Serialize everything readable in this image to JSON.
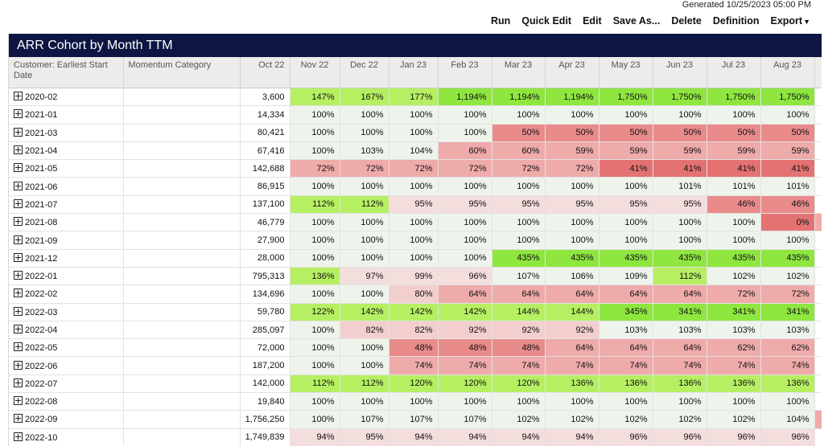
{
  "generated": "Generated 10/25/2023 05:00 PM",
  "toolbar": {
    "run": "Run",
    "quick_edit": "Quick Edit",
    "edit": "Edit",
    "save_as": "Save As...",
    "delete": "Delete",
    "definition": "Definition",
    "export": "Export"
  },
  "report": {
    "title": "ARR Cohort by Month TTM",
    "columns": [
      "Customer: Earliest Start Date",
      "Momentum Category",
      "Oct 22",
      "Nov 22",
      "Dec 22",
      "Jan 23",
      "Feb 23",
      "Mar 23",
      "Apr 23",
      "May 23",
      "Jun 23",
      "Jul 23",
      "Aug 23"
    ],
    "rows": [
      {
        "cohort": "2020-02",
        "momentum": "",
        "oct": "3,600",
        "pct": [
          "147%",
          "167%",
          "177%",
          "1,194%",
          "1,194%",
          "1,194%",
          "1,750%",
          "1,750%",
          "1,750%",
          "1,750%"
        ]
      },
      {
        "cohort": "2021-01",
        "momentum": "",
        "oct": "14,334",
        "pct": [
          "100%",
          "100%",
          "100%",
          "100%",
          "100%",
          "100%",
          "100%",
          "100%",
          "100%",
          "100%"
        ]
      },
      {
        "cohort": "2021-03",
        "momentum": "",
        "oct": "80,421",
        "pct": [
          "100%",
          "100%",
          "100%",
          "100%",
          "50%",
          "50%",
          "50%",
          "50%",
          "50%",
          "50%"
        ]
      },
      {
        "cohort": "2021-04",
        "momentum": "",
        "oct": "67,416",
        "pct": [
          "100%",
          "103%",
          "104%",
          "60%",
          "60%",
          "59%",
          "59%",
          "59%",
          "59%",
          "59%"
        ]
      },
      {
        "cohort": "2021-05",
        "momentum": "",
        "oct": "142,688",
        "pct": [
          "72%",
          "72%",
          "72%",
          "72%",
          "72%",
          "72%",
          "41%",
          "41%",
          "41%",
          "41%"
        ]
      },
      {
        "cohort": "2021-06",
        "momentum": "",
        "oct": "86,915",
        "pct": [
          "100%",
          "100%",
          "100%",
          "100%",
          "100%",
          "100%",
          "100%",
          "101%",
          "101%",
          "101%"
        ]
      },
      {
        "cohort": "2021-07",
        "momentum": "",
        "oct": "137,100",
        "pct": [
          "112%",
          "112%",
          "95%",
          "95%",
          "95%",
          "95%",
          "95%",
          "95%",
          "46%",
          "46%"
        ]
      },
      {
        "cohort": "2021-08",
        "momentum": "",
        "oct": "46,779",
        "pct": [
          "100%",
          "100%",
          "100%",
          "100%",
          "100%",
          "100%",
          "100%",
          "100%",
          "100%",
          "0%"
        ]
      },
      {
        "cohort": "2021-09",
        "momentum": "",
        "oct": "27,900",
        "pct": [
          "100%",
          "100%",
          "100%",
          "100%",
          "100%",
          "100%",
          "100%",
          "100%",
          "100%",
          "100%"
        ]
      },
      {
        "cohort": "2021-12",
        "momentum": "",
        "oct": "28,000",
        "pct": [
          "100%",
          "100%",
          "100%",
          "100%",
          "435%",
          "435%",
          "435%",
          "435%",
          "435%",
          "435%"
        ]
      },
      {
        "cohort": "2022-01",
        "momentum": "",
        "oct": "795,313",
        "pct": [
          "136%",
          "97%",
          "99%",
          "96%",
          "107%",
          "106%",
          "109%",
          "112%",
          "102%",
          "102%"
        ]
      },
      {
        "cohort": "2022-02",
        "momentum": "",
        "oct": "134,696",
        "pct": [
          "100%",
          "100%",
          "80%",
          "64%",
          "64%",
          "64%",
          "64%",
          "64%",
          "72%",
          "72%"
        ]
      },
      {
        "cohort": "2022-03",
        "momentum": "",
        "oct": "59,780",
        "pct": [
          "122%",
          "142%",
          "142%",
          "142%",
          "144%",
          "144%",
          "345%",
          "341%",
          "341%",
          "341%"
        ]
      },
      {
        "cohort": "2022-04",
        "momentum": "",
        "oct": "285,097",
        "pct": [
          "100%",
          "82%",
          "82%",
          "92%",
          "92%",
          "92%",
          "103%",
          "103%",
          "103%",
          "103%"
        ]
      },
      {
        "cohort": "2022-05",
        "momentum": "",
        "oct": "72,000",
        "pct": [
          "100%",
          "100%",
          "48%",
          "48%",
          "48%",
          "64%",
          "64%",
          "64%",
          "62%",
          "62%"
        ]
      },
      {
        "cohort": "2022-06",
        "momentum": "",
        "oct": "187,200",
        "pct": [
          "100%",
          "100%",
          "74%",
          "74%",
          "74%",
          "74%",
          "74%",
          "74%",
          "74%",
          "74%"
        ]
      },
      {
        "cohort": "2022-07",
        "momentum": "",
        "oct": "142,000",
        "pct": [
          "112%",
          "112%",
          "120%",
          "120%",
          "120%",
          "136%",
          "136%",
          "136%",
          "136%",
          "136%"
        ]
      },
      {
        "cohort": "2022-08",
        "momentum": "",
        "oct": "19,840",
        "pct": [
          "100%",
          "100%",
          "100%",
          "100%",
          "100%",
          "100%",
          "100%",
          "100%",
          "100%",
          "100%"
        ]
      },
      {
        "cohort": "2022-09",
        "momentum": "",
        "oct": "1,756,250",
        "pct": [
          "100%",
          "107%",
          "107%",
          "107%",
          "102%",
          "102%",
          "102%",
          "102%",
          "102%",
          "104%"
        ]
      },
      {
        "cohort": "2022-10",
        "momentum": "",
        "oct": "1,749,839",
        "pct": [
          "94%",
          "95%",
          "94%",
          "94%",
          "94%",
          "94%",
          "96%",
          "96%",
          "96%",
          "96%"
        ]
      }
    ]
  }
}
